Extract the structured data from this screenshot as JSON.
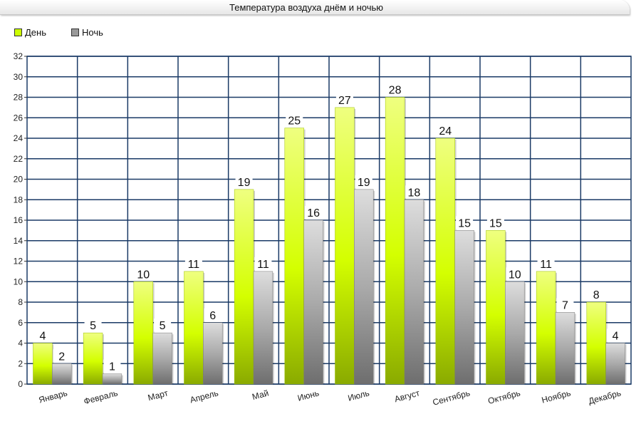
{
  "chart_data": {
    "type": "bar",
    "title": "Температура воздуха днём и ночью",
    "categories": [
      "Январь",
      "Февраль",
      "Март",
      "Апрель",
      "Май",
      "Июнь",
      "Июль",
      "Август",
      "Сентябрь",
      "Октябрь",
      "Ноябрь",
      "Декабрь"
    ],
    "series": [
      {
        "name": "День",
        "values": [
          4,
          5,
          10,
          11,
          19,
          25,
          27,
          28,
          24,
          15,
          11,
          8
        ],
        "color": "#ccff00"
      },
      {
        "name": "Ночь",
        "values": [
          2,
          1,
          5,
          6,
          11,
          16,
          19,
          18,
          15,
          10,
          7,
          4
        ],
        "color": "#999999"
      }
    ],
    "ylim": [
      0,
      32
    ],
    "ytick_step": 2,
    "grid": true,
    "grid_color": "#1a3a66",
    "legend_position": "top-left",
    "data_labels": true
  }
}
